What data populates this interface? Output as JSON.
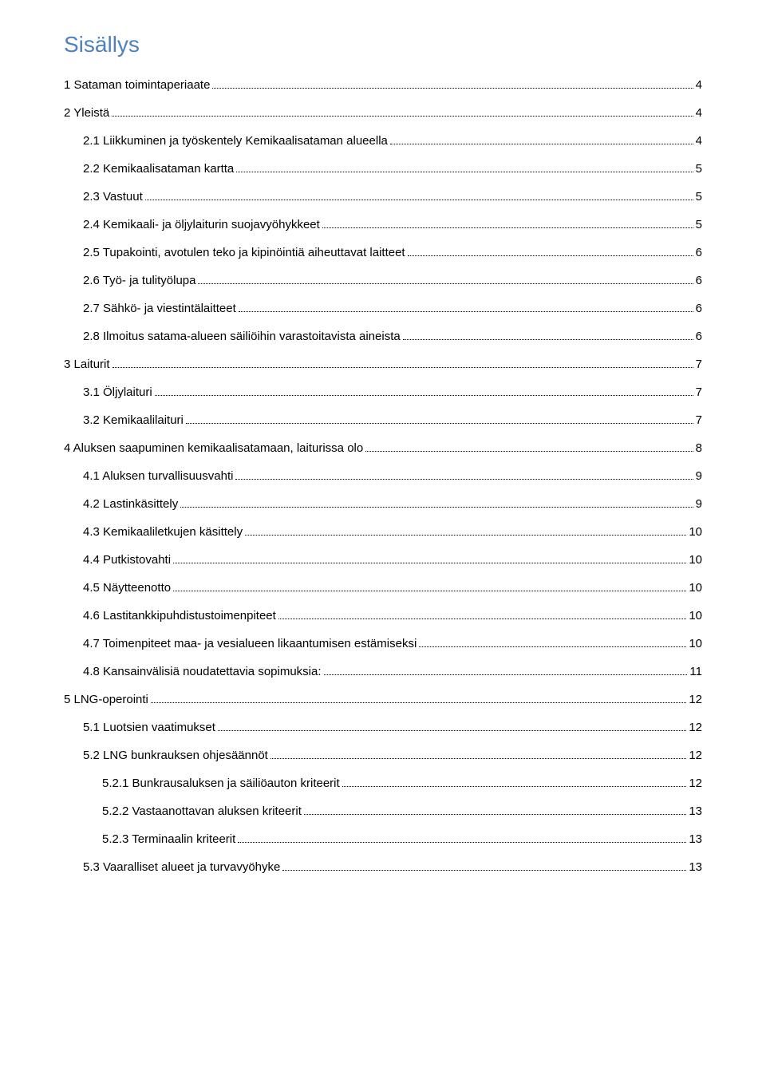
{
  "title": "Sisällys",
  "colors": {
    "title": "#4f81bd",
    "text": "#000000",
    "background": "#ffffff",
    "dots": "#000000"
  },
  "fontsizes": {
    "title": 28,
    "entry": 15
  },
  "toc": [
    {
      "level": 0,
      "label": "1 Sataman toimintaperiaate",
      "page": "4"
    },
    {
      "level": 0,
      "label": "2 Yleistä",
      "page": "4"
    },
    {
      "level": 1,
      "label": "2.1 Liikkuminen ja työskentely Kemikaalisataman alueella",
      "page": "4"
    },
    {
      "level": 1,
      "label": "2.2 Kemikaalisataman kartta",
      "page": "5"
    },
    {
      "level": 1,
      "label": "2.3 Vastuut",
      "page": "5"
    },
    {
      "level": 1,
      "label": "2.4 Kemikaali- ja öljylaiturin suojavyöhykkeet",
      "page": "5"
    },
    {
      "level": 1,
      "label": "2.5 Tupakointi, avotulen teko ja kipinöintiä aiheuttavat laitteet",
      "page": "6"
    },
    {
      "level": 1,
      "label": "2.6 Työ- ja tulityölupa",
      "page": "6"
    },
    {
      "level": 1,
      "label": "2.7 Sähkö- ja viestintälaitteet",
      "page": "6"
    },
    {
      "level": 1,
      "label": "2.8 Ilmoitus satama-alueen säiliöihin varastoitavista aineista",
      "page": "6"
    },
    {
      "level": 0,
      "label": "3 Laiturit",
      "page": "7"
    },
    {
      "level": 1,
      "label": "3.1 Öljylaituri",
      "page": "7"
    },
    {
      "level": 1,
      "label": "3.2 Kemikaalilaituri",
      "page": "7"
    },
    {
      "level": 0,
      "label": "4 Aluksen saapuminen kemikaalisatamaan, laiturissa olo",
      "page": "8"
    },
    {
      "level": 1,
      "label": "4.1 Aluksen turvallisuusvahti",
      "page": "9"
    },
    {
      "level": 1,
      "label": "4.2 Lastinkäsittely",
      "page": "9"
    },
    {
      "level": 1,
      "label": "4.3 Kemikaaliletkujen käsittely",
      "page": "10"
    },
    {
      "level": 1,
      "label": "4.4 Putkistovahti",
      "page": "10"
    },
    {
      "level": 1,
      "label": "4.5 Näytteenotto",
      "page": "10"
    },
    {
      "level": 1,
      "label": "4.6 Lastitankkipuhdistustoimenpiteet",
      "page": "10"
    },
    {
      "level": 1,
      "label": "4.7 Toimenpiteet maa- ja vesialueen likaantumisen estämiseksi",
      "page": "10"
    },
    {
      "level": 1,
      "label": "4.8 Kansainvälisiä noudatettavia sopimuksia:",
      "page": "11"
    },
    {
      "level": 0,
      "label": "5 LNG-operointi",
      "page": "12"
    },
    {
      "level": 1,
      "label": "5.1 Luotsien vaatimukset",
      "page": "12"
    },
    {
      "level": 1,
      "label": "5.2 LNG bunkrauksen ohjesäännöt",
      "page": "12"
    },
    {
      "level": 2,
      "label": "5.2.1 Bunkrausaluksen ja säiliöauton kriteerit",
      "page": "12"
    },
    {
      "level": 2,
      "label": "5.2.2 Vastaanottavan aluksen kriteerit",
      "page": "13"
    },
    {
      "level": 2,
      "label": "5.2.3 Terminaalin kriteerit",
      "page": "13"
    },
    {
      "level": 1,
      "label": "5.3 Vaaralliset alueet ja turvavyöhyke",
      "page": "13"
    }
  ]
}
